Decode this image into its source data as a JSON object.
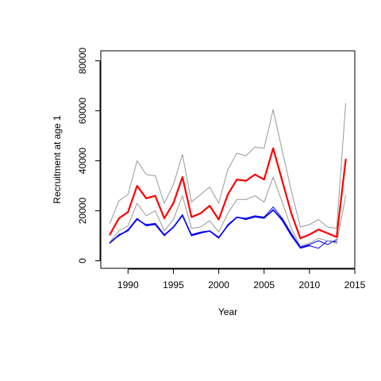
{
  "chart_data": {
    "type": "line",
    "title": "",
    "xlabel": "Year",
    "ylabel": "Recruitment at age 1",
    "xlim": [
      1987,
      2015
    ],
    "ylim": [
      -3000,
      84000
    ],
    "xticks": [
      1990,
      1995,
      2000,
      2005,
      2010,
      2015
    ],
    "yticks": [
      0,
      20000,
      40000,
      60000,
      80000
    ],
    "x": [
      1988,
      1989,
      1990,
      1991,
      1992,
      1993,
      1994,
      1995,
      1996,
      1997,
      1998,
      1999,
      2000,
      2001,
      2002,
      2003,
      2004,
      2005,
      2006,
      2007,
      2008,
      2009,
      2010,
      2011,
      2012,
      2013,
      2014
    ],
    "grid": false,
    "legend": "none",
    "series": [
      {
        "color": "#ff0000",
        "width": 2.2,
        "values": [
          10500,
          17000,
          19500,
          30000,
          25000,
          26000,
          17000,
          23000,
          33500,
          17500,
          19000,
          22000,
          16500,
          26500,
          32500,
          32000,
          34500,
          32500,
          45000,
          32000,
          19000,
          9000,
          10500,
          12500,
          11000,
          9500,
          40500
        ]
      },
      {
        "color": "#999999",
        "width": 1,
        "values": [
          15000,
          24000,
          26500,
          40000,
          34500,
          34000,
          23000,
          30500,
          42500,
          23500,
          26500,
          29500,
          23000,
          36500,
          43000,
          42000,
          45500,
          45000,
          60500,
          44000,
          28000,
          13500,
          14500,
          16500,
          13500,
          13000,
          63000
        ]
      },
      {
        "color": "#999999",
        "width": 1,
        "values": [
          7500,
          12000,
          14000,
          23000,
          18000,
          20000,
          12000,
          16500,
          26000,
          13000,
          13500,
          16000,
          11500,
          19000,
          24500,
          24500,
          26000,
          23500,
          33500,
          23500,
          13000,
          6000,
          7000,
          9000,
          8000,
          7000,
          26000
        ]
      },
      {
        "color": "#0000ff",
        "width": 1,
        "values": [
          7500,
          10000,
          12500,
          17000,
          14000,
          14500,
          10000,
          13500,
          18500,
          10000,
          11000,
          12000,
          9500,
          14000,
          17500,
          17000,
          18000,
          17500,
          21500,
          17000,
          11000,
          5500,
          6500,
          8000,
          6500,
          8500,
          null
        ]
      },
      {
        "color": "#0000ff",
        "width": 1,
        "values": [
          7000,
          10500,
          12000,
          16500,
          14500,
          15000,
          10500,
          13500,
          18000,
          10500,
          11500,
          12000,
          9000,
          14500,
          17500,
          16500,
          17500,
          17000,
          20500,
          16000,
          10000,
          5000,
          6000,
          5000,
          8000,
          7500,
          null
        ]
      },
      {
        "color": "#0000cc",
        "width": 1.6,
        "values": [
          7200,
          10200,
          12100,
          16700,
          14200,
          14600,
          10200,
          13400,
          18200,
          10100,
          11200,
          11900,
          9200,
          14100,
          17400,
          16700,
          17600,
          17100,
          20300,
          16400,
          10500,
          5300,
          6200,
          null,
          null,
          null,
          null
        ]
      }
    ]
  }
}
